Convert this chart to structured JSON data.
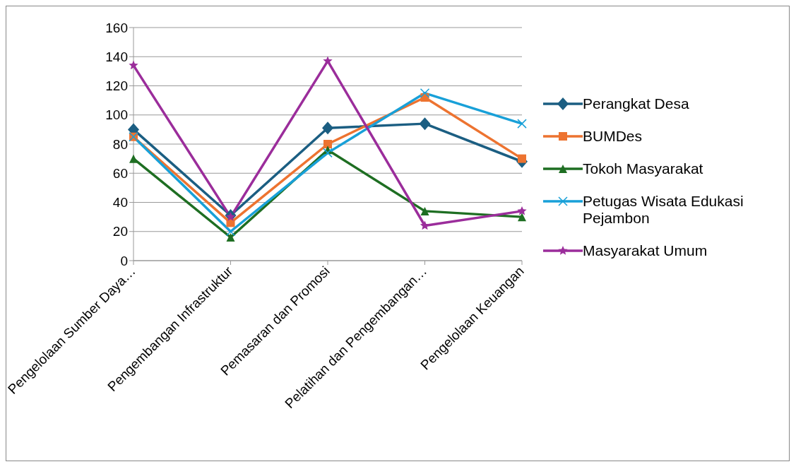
{
  "chart_data": {
    "type": "line",
    "categories": [
      "Pengelolaan Sumber Daya…",
      "Pengembangan Infrastruktur",
      "Pemasaran dan Promosi",
      "Pelatihan dan Pengembangan…",
      "Pengelolaan Keuangan"
    ],
    "series": [
      {
        "name": "Perangkat Desa",
        "color": "#1b5e82",
        "marker": "diamond",
        "values": [
          90,
          31,
          91,
          94,
          68
        ]
      },
      {
        "name": "BUMDes",
        "color": "#ed7330",
        "marker": "square",
        "values": [
          85,
          26,
          80,
          112,
          70
        ]
      },
      {
        "name": "Tokoh Masyarakat",
        "color": "#1e6e22",
        "marker": "triangle",
        "values": [
          70,
          16,
          76,
          34,
          30
        ]
      },
      {
        "name": "Petugas Wisata Edukasi Pejambon",
        "color": "#18a0d8",
        "marker": "cross",
        "values": [
          85,
          20,
          74,
          115,
          94
        ]
      },
      {
        "name": "Masyarakat Umum",
        "color": "#9b2d9b",
        "marker": "star",
        "values": [
          134,
          30,
          137,
          24,
          34
        ]
      }
    ],
    "ylim": [
      0,
      160
    ],
    "yticks": [
      0,
      20,
      40,
      60,
      80,
      100,
      120,
      140,
      160
    ],
    "grid": "y",
    "legend": "right"
  }
}
